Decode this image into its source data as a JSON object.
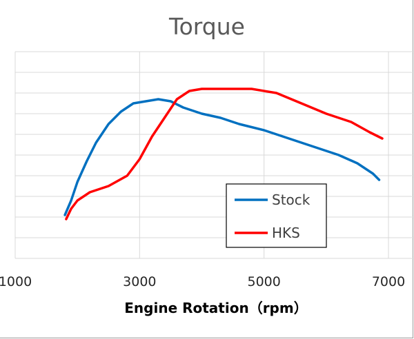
{
  "chart_data": {
    "type": "line",
    "title": "Torque",
    "xlabel": "Engine Rotation（rpm）",
    "ylabel": "",
    "xlim": [
      1000,
      7000
    ],
    "ylim": [
      0,
      10
    ],
    "x_ticks": [
      1000,
      3000,
      5000,
      7000
    ],
    "x_tick_labels": [
      "1000",
      "3000",
      "5000",
      "7000"
    ],
    "y_grid_count": 10,
    "grid": true,
    "legend_position": "bottom-right",
    "series": [
      {
        "name": "Stock",
        "color": "#0070c0",
        "points": [
          [
            1800,
            2.1
          ],
          [
            1900,
            2.8
          ],
          [
            2000,
            3.7
          ],
          [
            2150,
            4.7
          ],
          [
            2300,
            5.6
          ],
          [
            2500,
            6.5
          ],
          [
            2700,
            7.1
          ],
          [
            2900,
            7.5
          ],
          [
            3100,
            7.6
          ],
          [
            3300,
            7.7
          ],
          [
            3500,
            7.6
          ],
          [
            3700,
            7.3
          ],
          [
            4000,
            7.0
          ],
          [
            4300,
            6.8
          ],
          [
            4600,
            6.5
          ],
          [
            5000,
            6.2
          ],
          [
            5400,
            5.8
          ],
          [
            5800,
            5.4
          ],
          [
            6200,
            5.0
          ],
          [
            6500,
            4.6
          ],
          [
            6750,
            4.1
          ],
          [
            6850,
            3.8
          ]
        ]
      },
      {
        "name": "HKS",
        "color": "#ff0000",
        "points": [
          [
            1820,
            1.9
          ],
          [
            1900,
            2.4
          ],
          [
            2000,
            2.8
          ],
          [
            2200,
            3.2
          ],
          [
            2500,
            3.5
          ],
          [
            2800,
            4.0
          ],
          [
            3000,
            4.8
          ],
          [
            3200,
            5.9
          ],
          [
            3400,
            6.8
          ],
          [
            3600,
            7.7
          ],
          [
            3800,
            8.1
          ],
          [
            4000,
            8.2
          ],
          [
            4500,
            8.2
          ],
          [
            4800,
            8.2
          ],
          [
            5200,
            8.0
          ],
          [
            5600,
            7.5
          ],
          [
            6000,
            7.0
          ],
          [
            6400,
            6.6
          ],
          [
            6700,
            6.1
          ],
          [
            6900,
            5.8
          ]
        ]
      }
    ]
  }
}
